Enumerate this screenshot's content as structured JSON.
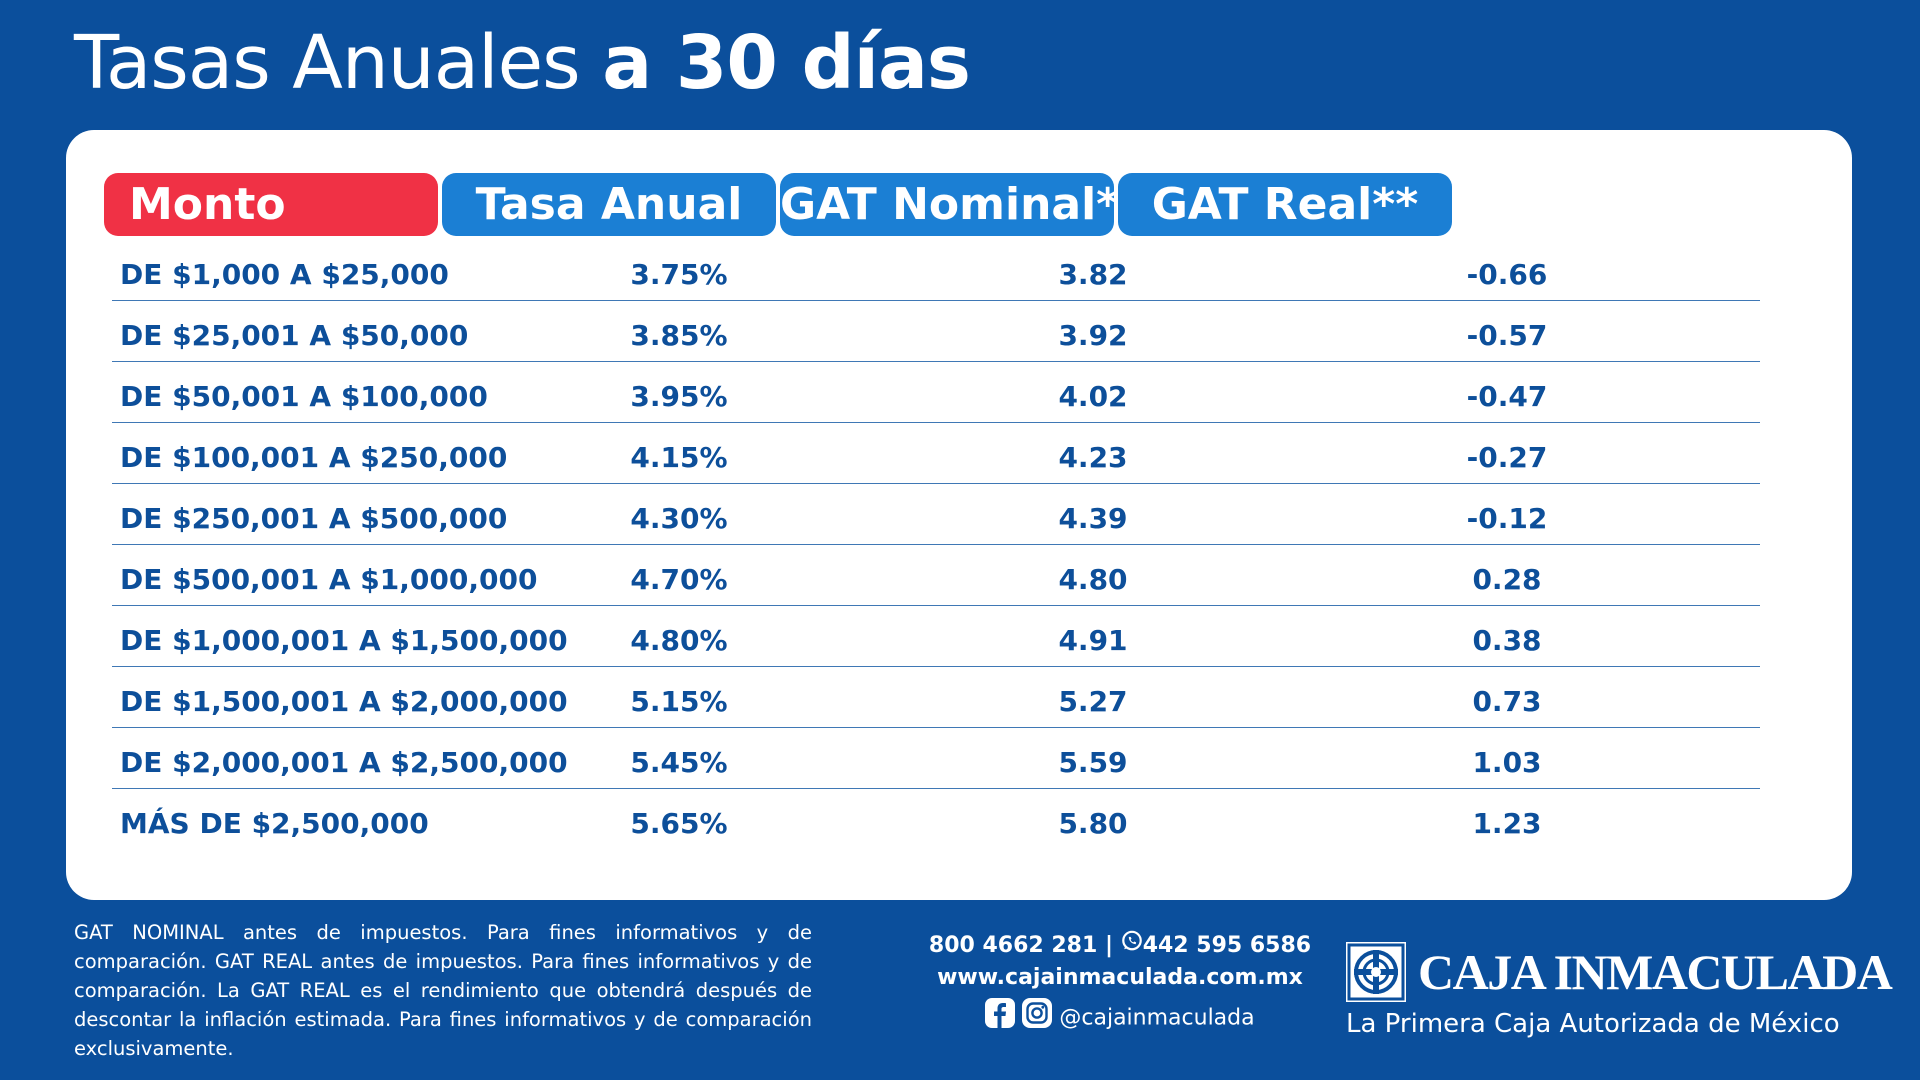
{
  "title": {
    "light": "Tasas Anuales",
    "bold": "a 30 días"
  },
  "table": {
    "headers": [
      "Monto",
      "Tasa Anual",
      "GAT Nominal*",
      "GAT Real**"
    ],
    "rows": [
      {
        "monto": "DE $1,000 A $25,000",
        "tasa": "3.75%",
        "gat_nominal": "3.82",
        "gat_real": "-0.66"
      },
      {
        "monto": "DE $25,001 A $50,000",
        "tasa": "3.85%",
        "gat_nominal": "3.92",
        "gat_real": "-0.57"
      },
      {
        "monto": "DE $50,001 A $100,000",
        "tasa": "3.95%",
        "gat_nominal": "4.02",
        "gat_real": "-0.47"
      },
      {
        "monto": "DE $100,001 A $250,000",
        "tasa": "4.15%",
        "gat_nominal": "4.23",
        "gat_real": "-0.27"
      },
      {
        "monto": "DE $250,001 A $500,000",
        "tasa": "4.30%",
        "gat_nominal": "4.39",
        "gat_real": "-0.12"
      },
      {
        "monto": "DE $500,001 A $1,000,000",
        "tasa": "4.70%",
        "gat_nominal": "4.80",
        "gat_real": "0.28"
      },
      {
        "monto": "DE $1,000,001 A $1,500,000",
        "tasa": "4.80%",
        "gat_nominal": "4.91",
        "gat_real": "0.38"
      },
      {
        "monto": "DE $1,500,001 A $2,000,000",
        "tasa": "5.15%",
        "gat_nominal": "5.27",
        "gat_real": "0.73"
      },
      {
        "monto": "DE $2,000,001 A $2,500,000",
        "tasa": "5.45%",
        "gat_nominal": "5.59",
        "gat_real": "1.03"
      },
      {
        "monto": "MÁS DE $2,500,000",
        "tasa": "5.65%",
        "gat_nominal": "5.80",
        "gat_real": "1.23"
      }
    ]
  },
  "disclaimer": "GAT NOMINAL antes de impuestos. Para fines informativos y de comparación. GAT REAL antes de impuestos. Para fines informativos y de comparación. La GAT REAL es el rendimiento que obtendrá después de descontar la inflación estimada. Para fines informativos y de comparación exclusivamente.",
  "contact": {
    "phone": "800 4662 281",
    "separator": "|",
    "whatsapp": "442 595 6586",
    "website": "www.cajainmaculada.com.mx",
    "social_handle": "@cajainmaculada"
  },
  "brand": {
    "name": "CAJA INMACULADA",
    "tagline": "La Primera Caja Autorizada de México"
  },
  "icons": {
    "whatsapp": "whatsapp-icon",
    "facebook": "facebook-icon",
    "instagram": "instagram-icon",
    "logo": "caja-inmaculada-logo"
  },
  "colors": {
    "background": "#0b4f9c",
    "header_monto": "#f03145",
    "header_blue": "#1b7fd4",
    "row_text": "#0d4f9a",
    "card": "#ffffff"
  }
}
